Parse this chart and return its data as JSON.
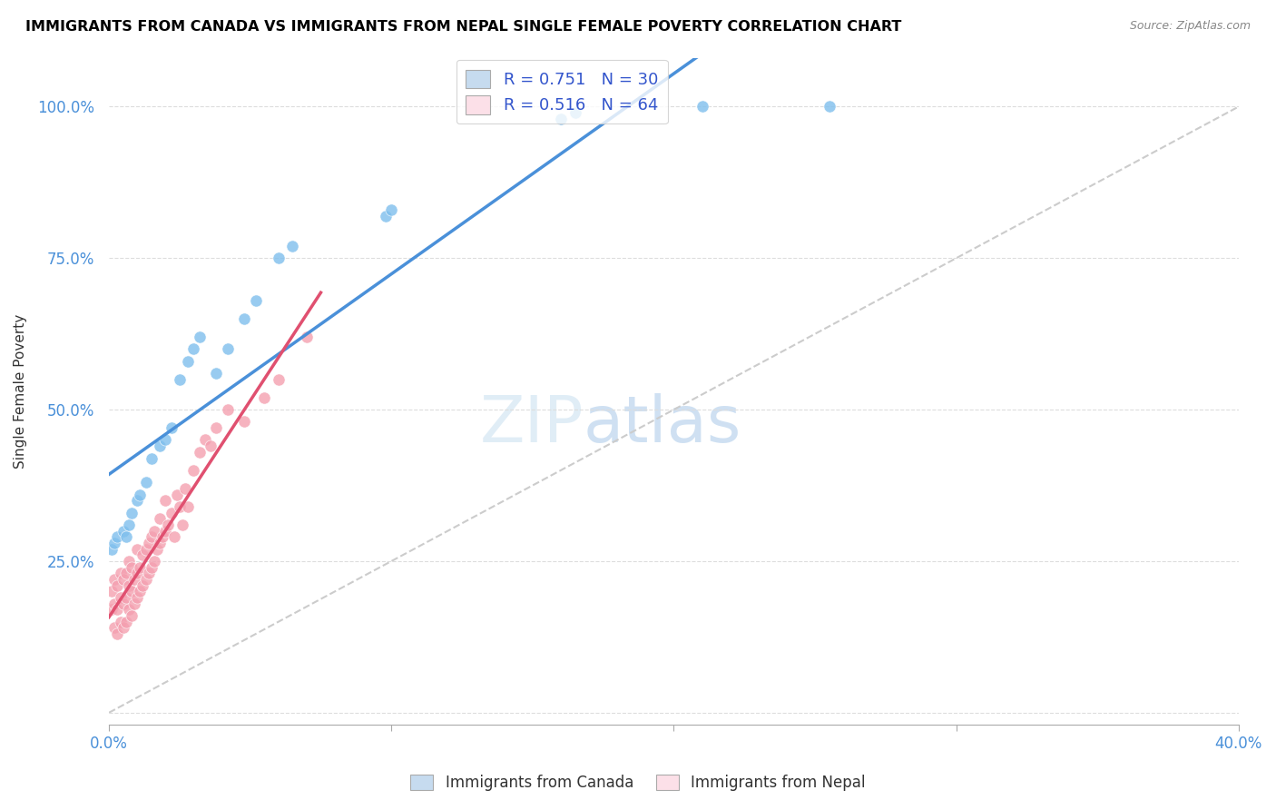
{
  "title": "IMMIGRANTS FROM CANADA VS IMMIGRANTS FROM NEPAL SINGLE FEMALE POVERTY CORRELATION CHART",
  "source": "Source: ZipAtlas.com",
  "ylabel": "Single Female Poverty",
  "xlim": [
    0.0,
    0.4
  ],
  "ylim": [
    -0.02,
    1.08
  ],
  "canada_color": "#7fbfed",
  "canada_color_light": "#c6dbef",
  "nepal_color": "#f4a0b0",
  "nepal_color_light": "#fce0e8",
  "canada_R": 0.751,
  "canada_N": 30,
  "nepal_R": 0.516,
  "nepal_N": 64,
  "legend_label_canada": "Immigrants from Canada",
  "legend_label_nepal": "Immigrants from Nepal",
  "canada_x": [
    0.001,
    0.002,
    0.003,
    0.005,
    0.006,
    0.007,
    0.008,
    0.01,
    0.011,
    0.013,
    0.015,
    0.018,
    0.02,
    0.022,
    0.025,
    0.028,
    0.03,
    0.032,
    0.038,
    0.042,
    0.048,
    0.052,
    0.06,
    0.065,
    0.098,
    0.1,
    0.16,
    0.165,
    0.21,
    0.255
  ],
  "canada_y": [
    0.27,
    0.28,
    0.29,
    0.3,
    0.29,
    0.31,
    0.33,
    0.35,
    0.36,
    0.38,
    0.42,
    0.44,
    0.45,
    0.47,
    0.55,
    0.58,
    0.6,
    0.62,
    0.56,
    0.6,
    0.65,
    0.68,
    0.75,
    0.77,
    0.82,
    0.83,
    0.98,
    0.99,
    1.0,
    1.0
  ],
  "nepal_x": [
    0.001,
    0.001,
    0.002,
    0.002,
    0.002,
    0.003,
    0.003,
    0.003,
    0.004,
    0.004,
    0.004,
    0.005,
    0.005,
    0.005,
    0.006,
    0.006,
    0.006,
    0.007,
    0.007,
    0.007,
    0.008,
    0.008,
    0.008,
    0.009,
    0.009,
    0.01,
    0.01,
    0.01,
    0.011,
    0.011,
    0.012,
    0.012,
    0.013,
    0.013,
    0.014,
    0.014,
    0.015,
    0.015,
    0.016,
    0.016,
    0.017,
    0.018,
    0.018,
    0.019,
    0.02,
    0.02,
    0.021,
    0.022,
    0.023,
    0.024,
    0.025,
    0.026,
    0.027,
    0.028,
    0.03,
    0.032,
    0.034,
    0.036,
    0.038,
    0.042,
    0.048,
    0.055,
    0.06,
    0.07
  ],
  "nepal_y": [
    0.17,
    0.2,
    0.14,
    0.18,
    0.22,
    0.13,
    0.17,
    0.21,
    0.15,
    0.19,
    0.23,
    0.14,
    0.18,
    0.22,
    0.15,
    0.19,
    0.23,
    0.17,
    0.21,
    0.25,
    0.16,
    0.2,
    0.24,
    0.18,
    0.22,
    0.19,
    0.23,
    0.27,
    0.2,
    0.24,
    0.21,
    0.26,
    0.22,
    0.27,
    0.23,
    0.28,
    0.24,
    0.29,
    0.25,
    0.3,
    0.27,
    0.28,
    0.32,
    0.29,
    0.3,
    0.35,
    0.31,
    0.33,
    0.29,
    0.36,
    0.34,
    0.31,
    0.37,
    0.34,
    0.4,
    0.43,
    0.45,
    0.44,
    0.47,
    0.5,
    0.48,
    0.52,
    0.55,
    0.62
  ],
  "ref_line_x": [
    0.0,
    0.4
  ],
  "ref_line_y": [
    0.0,
    1.0
  ],
  "yticks": [
    0.0,
    0.25,
    0.5,
    0.75,
    1.0
  ],
  "ytick_labels": [
    "",
    "25.0%",
    "50.0%",
    "75.0%",
    "100.0%"
  ],
  "xticks": [
    0.0,
    0.1,
    0.2,
    0.3,
    0.4
  ],
  "xtick_labels": [
    "0.0%",
    "",
    "",
    "",
    "40.0%"
  ]
}
